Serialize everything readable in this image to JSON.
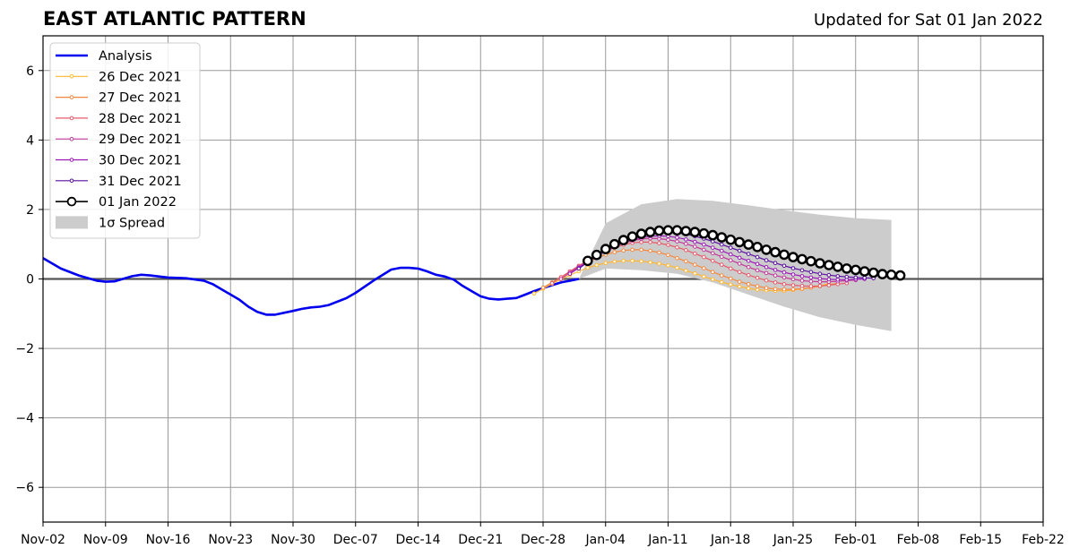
{
  "header": {
    "title": "EAST ATLANTIC PATTERN",
    "updated": "Updated for Sat 01 Jan 2022"
  },
  "colors": {
    "analysis": "#0000ee",
    "spread": "#cccccc",
    "grid": "#999999",
    "zero_line": "#555555"
  },
  "chart_data": {
    "type": "line",
    "title": "EAST ATLANTIC PATTERN",
    "xlabel": "",
    "ylabel": "",
    "x_axis": {
      "start": "2021-11-02",
      "end": "2022-02-22",
      "ticks": [
        "2021-11-02",
        "2021-11-09",
        "2021-11-16",
        "2021-11-23",
        "2021-11-30",
        "2021-12-07",
        "2021-12-14",
        "2021-12-21",
        "2021-12-28",
        "2022-01-04",
        "2022-01-11",
        "2022-01-18",
        "2022-01-25",
        "2022-02-01",
        "2022-02-08",
        "2022-02-15",
        "2022-02-22"
      ],
      "tick_labels": [
        "Nov-02",
        "Nov-09",
        "Nov-16",
        "Nov-23",
        "Nov-30",
        "Dec-07",
        "Dec-14",
        "Dec-21",
        "Dec-28",
        "Jan-04",
        "Jan-11",
        "Jan-18",
        "Jan-25",
        "Feb-01",
        "Feb-08",
        "Feb-15",
        "Feb-22"
      ]
    },
    "y_axis": {
      "ylim": [
        -7,
        7
      ],
      "ticks": [
        -6,
        -4,
        -2,
        0,
        2,
        4,
        6
      ],
      "tick_labels": [
        "−6",
        "−4",
        "−2",
        "0",
        "2",
        "4",
        "6"
      ]
    },
    "grid": true,
    "legend": {
      "placement": "top-left",
      "entries": [
        "Analysis",
        "26 Dec 2021",
        "27 Dec 2021",
        "28 Dec 2021",
        "29 Dec 2021",
        "30 Dec 2021",
        "31 Dec 2021",
        "01 Jan 2022",
        "1σ Spread"
      ]
    },
    "analysis": {
      "name": "Analysis",
      "color": "#0000ee",
      "points": [
        [
          "2021-11-02",
          0.6
        ],
        [
          "2021-11-04",
          0.3
        ],
        [
          "2021-11-06",
          0.1
        ],
        [
          "2021-11-08",
          -0.05
        ],
        [
          "2021-11-09",
          -0.08
        ],
        [
          "2021-11-10",
          -0.07
        ],
        [
          "2021-11-12",
          0.08
        ],
        [
          "2021-11-13",
          0.12
        ],
        [
          "2021-11-14",
          0.1
        ],
        [
          "2021-11-16",
          0.04
        ],
        [
          "2021-11-18",
          0.02
        ],
        [
          "2021-11-20",
          -0.05
        ],
        [
          "2021-11-21",
          -0.15
        ],
        [
          "2021-11-22",
          -0.3
        ],
        [
          "2021-11-24",
          -0.6
        ],
        [
          "2021-11-25",
          -0.8
        ],
        [
          "2021-11-26",
          -0.95
        ],
        [
          "2021-11-27",
          -1.03
        ],
        [
          "2021-11-28",
          -1.03
        ],
        [
          "2021-11-30",
          -0.92
        ],
        [
          "2021-12-01",
          -0.86
        ],
        [
          "2021-12-02",
          -0.82
        ],
        [
          "2021-12-03",
          -0.8
        ],
        [
          "2021-12-04",
          -0.75
        ],
        [
          "2021-12-06",
          -0.55
        ],
        [
          "2021-12-07",
          -0.4
        ],
        [
          "2021-12-09",
          -0.05
        ],
        [
          "2021-12-11",
          0.27
        ],
        [
          "2021-12-12",
          0.32
        ],
        [
          "2021-12-13",
          0.32
        ],
        [
          "2021-12-14",
          0.3
        ],
        [
          "2021-12-15",
          0.22
        ],
        [
          "2021-12-16",
          0.12
        ],
        [
          "2021-12-17",
          0.07
        ],
        [
          "2021-12-18",
          -0.02
        ],
        [
          "2021-12-19",
          -0.2
        ],
        [
          "2021-12-20",
          -0.35
        ],
        [
          "2021-12-21",
          -0.5
        ],
        [
          "2021-12-22",
          -0.57
        ],
        [
          "2021-12-23",
          -0.59
        ],
        [
          "2021-12-24",
          -0.57
        ],
        [
          "2021-12-25",
          -0.55
        ],
        [
          "2021-12-26",
          -0.45
        ],
        [
          "2021-12-27",
          -0.35
        ],
        [
          "2021-12-28",
          -0.26
        ],
        [
          "2021-12-30",
          -0.1
        ],
        [
          "2022-01-01",
          0.0
        ]
      ]
    },
    "spread": {
      "name": "1σ Spread",
      "color": "#cccccc",
      "upper": [
        [
          "2022-01-01",
          0.0
        ],
        [
          "2022-01-04",
          1.6
        ],
        [
          "2022-01-08",
          2.15
        ],
        [
          "2022-01-12",
          2.3
        ],
        [
          "2022-01-16",
          2.25
        ],
        [
          "2022-01-20",
          2.12
        ],
        [
          "2022-01-24",
          1.98
        ],
        [
          "2022-01-28",
          1.85
        ],
        [
          "2022-02-01",
          1.75
        ],
        [
          "2022-02-05",
          1.7
        ]
      ],
      "lower": [
        [
          "2022-01-01",
          0.0
        ],
        [
          "2022-01-04",
          0.3
        ],
        [
          "2022-01-08",
          0.25
        ],
        [
          "2022-01-12",
          0.15
        ],
        [
          "2022-01-16",
          -0.1
        ],
        [
          "2022-01-20",
          -0.45
        ],
        [
          "2022-01-24",
          -0.8
        ],
        [
          "2022-01-28",
          -1.1
        ],
        [
          "2022-02-01",
          -1.32
        ],
        [
          "2022-02-05",
          -1.5
        ]
      ]
    },
    "series": [
      {
        "name": "26 Dec 2021",
        "color": "#ffb833",
        "start": "2021-12-27",
        "values": [
          -0.42,
          -0.28,
          -0.14,
          -0.01,
          0.11,
          0.22,
          0.32,
          0.4,
          0.46,
          0.5,
          0.52,
          0.52,
          0.51,
          0.48,
          0.44,
          0.39,
          0.32,
          0.24,
          0.16,
          0.07,
          -0.01,
          -0.09,
          -0.16,
          -0.22,
          -0.27,
          -0.31,
          -0.33,
          -0.34,
          -0.34,
          -0.32,
          -0.29,
          -0.25,
          -0.2,
          -0.13
        ]
      },
      {
        "name": "27 Dec 2021",
        "color": "#f5883f",
        "start": "2021-12-28",
        "values": [
          -0.25,
          -0.1,
          0.05,
          0.2,
          0.35,
          0.48,
          0.6,
          0.7,
          0.77,
          0.82,
          0.84,
          0.84,
          0.81,
          0.76,
          0.69,
          0.6,
          0.51,
          0.41,
          0.31,
          0.2,
          0.1,
          0.01,
          -0.08,
          -0.15,
          -0.21,
          -0.26,
          -0.29,
          -0.3,
          -0.3,
          -0.28,
          -0.25,
          -0.21,
          -0.17,
          -0.12
        ]
      },
      {
        "name": "28 Dec 2021",
        "color": "#e65a6a",
        "start": "2021-12-29",
        "values": [
          -0.12,
          0.05,
          0.22,
          0.38,
          0.53,
          0.67,
          0.8,
          0.9,
          0.98,
          1.04,
          1.06,
          1.06,
          1.03,
          0.98,
          0.91,
          0.83,
          0.73,
          0.63,
          0.52,
          0.41,
          0.3,
          0.2,
          0.11,
          0.03,
          -0.04,
          -0.1,
          -0.15,
          -0.18,
          -0.2,
          -0.21,
          -0.2,
          -0.18,
          -0.15,
          -0.12
        ]
      },
      {
        "name": "29 Dec 2021",
        "color": "#c2399a",
        "start": "2021-12-30",
        "values": [
          0.0,
          0.18,
          0.35,
          0.52,
          0.67,
          0.81,
          0.93,
          1.03,
          1.1,
          1.15,
          1.17,
          1.16,
          1.13,
          1.08,
          1.01,
          0.93,
          0.84,
          0.74,
          0.64,
          0.54,
          0.44,
          0.34,
          0.25,
          0.17,
          0.1,
          0.04,
          -0.01,
          -0.05,
          -0.07,
          -0.08,
          -0.08,
          -0.07,
          -0.05,
          -0.03
        ]
      },
      {
        "name": "30 Dec 2021",
        "color": "#9a1ab5",
        "start": "2021-12-31",
        "values": [
          0.15,
          0.32,
          0.49,
          0.65,
          0.8,
          0.93,
          1.04,
          1.13,
          1.19,
          1.23,
          1.24,
          1.23,
          1.19,
          1.14,
          1.07,
          0.99,
          0.9,
          0.81,
          0.71,
          0.61,
          0.52,
          0.43,
          0.34,
          0.26,
          0.19,
          0.13,
          0.08,
          0.04,
          0.01,
          -0.01,
          -0.02,
          -0.02,
          -0.01,
          0.0
        ]
      },
      {
        "name": "31 Dec 2021",
        "color": "#5a0f9e",
        "start": "2022-01-01",
        "values": [
          0.3,
          0.48,
          0.66,
          0.83,
          0.98,
          1.11,
          1.21,
          1.29,
          1.34,
          1.36,
          1.36,
          1.33,
          1.29,
          1.23,
          1.16,
          1.08,
          0.99,
          0.9,
          0.81,
          0.72,
          0.63,
          0.54,
          0.46,
          0.38,
          0.31,
          0.25,
          0.2,
          0.15,
          0.11,
          0.08,
          0.06,
          0.04,
          0.03,
          0.02
        ]
      },
      {
        "name": "01 Jan 2022",
        "color": "#000000",
        "start": "2022-01-02",
        "values": [
          0.52,
          0.69,
          0.86,
          1.0,
          1.12,
          1.22,
          1.3,
          1.35,
          1.39,
          1.4,
          1.4,
          1.38,
          1.35,
          1.31,
          1.26,
          1.2,
          1.13,
          1.06,
          0.99,
          0.92,
          0.84,
          0.77,
          0.7,
          0.63,
          0.57,
          0.51,
          0.45,
          0.4,
          0.35,
          0.3,
          0.26,
          0.22,
          0.18,
          0.14,
          0.12,
          0.1
        ]
      }
    ]
  }
}
